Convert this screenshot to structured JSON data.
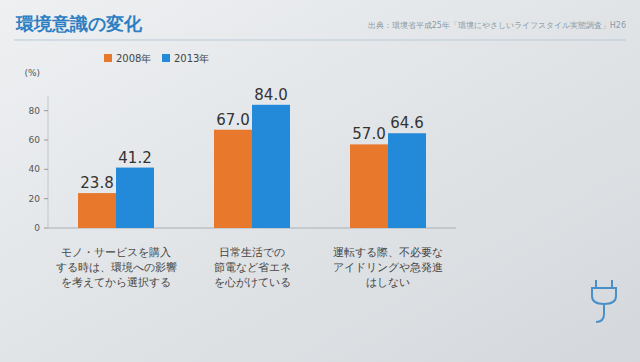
{
  "chart_data": {
    "type": "bar",
    "title": "環境意識の変化",
    "subtitle": "出典：環境省平成25年「環境にやさしいライフスタイル実態調査」H26",
    "y_label": "(%)",
    "categories": [
      "モノ・サービスを購入\nする時は、環境への影響\nを考えてから選択する",
      "日常生活での\n節電など省エネ\nを心がけている",
      "運転する際、不必要な\nアイドリングや急発進\nはしない"
    ],
    "series": [
      {
        "name": "2008年",
        "color": "#e8782c",
        "values": [
          23.8,
          67.0,
          57.0
        ],
        "value_labels": [
          "23.8",
          "67.0",
          "57.0"
        ]
      },
      {
        "name": "2013年",
        "color": "#2389d9",
        "values": [
          41.2,
          84.0,
          64.6
        ],
        "value_labels": [
          "41.2",
          "84.0",
          "64.6"
        ]
      }
    ],
    "ylim": [
      0,
      90
    ],
    "yticks": [
      0,
      20,
      40,
      60,
      80
    ],
    "grid": false,
    "legend": "top-left",
    "data_labels": true
  }
}
